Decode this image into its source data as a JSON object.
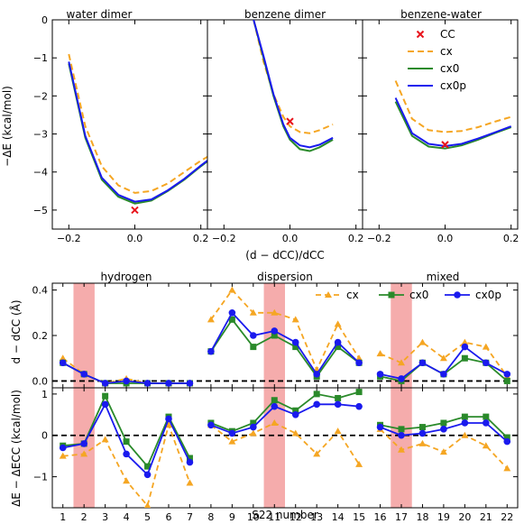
{
  "colors": {
    "cx": "#f5a623",
    "cx0": "#2a8a2a",
    "cx0p": "#1a1aee",
    "cc": "#e8141c",
    "shade": "#f08080",
    "zero": "#000000"
  },
  "top": {
    "ylabel": "−ΔE (kcal/mol)",
    "xlabel": "(d − dCC)/dCC",
    "yticks": [
      "0",
      "−1",
      "−2",
      "−3",
      "−4",
      "−5"
    ],
    "xticks": [
      "−0.2",
      "0.0",
      "0.2"
    ],
    "ylim": [
      -5.5,
      0
    ],
    "legend": [
      "CC",
      "cx",
      "cx0",
      "cx0p"
    ]
  },
  "bottom": {
    "groups": [
      "hydrogen",
      "dispersion",
      "mixed"
    ],
    "y1label": "d − dCC (Å)",
    "y2label": "ΔE − ΔECC (kcal/mol)",
    "y1ticks": [
      "0.0",
      "0.2",
      "0.4"
    ],
    "y2ticks": [
      "−1",
      "0",
      "1"
    ],
    "xlabel": "S22 number",
    "xticks": [
      "1",
      "2",
      "3",
      "4",
      "5",
      "6",
      "7",
      "8",
      "9",
      "10",
      "11",
      "12",
      "13",
      "14",
      "15",
      "16",
      "17",
      "18",
      "19",
      "20",
      "21",
      "22"
    ],
    "legend": [
      "cx",
      "cx0",
      "cx0p"
    ]
  },
  "chart_data": [
    {
      "type": "line",
      "title": "water dimer",
      "xlabel": "(d − dCC)/dCC",
      "ylabel": "−ΔE (kcal/mol)",
      "xlim": [
        -0.25,
        0.22
      ],
      "ylim": [
        -5.5,
        0
      ],
      "series": [
        {
          "name": "cx",
          "x": [
            -0.2,
            -0.15,
            -0.1,
            -0.05,
            0,
            0.05,
            0.1,
            0.15,
            0.2,
            0.22
          ],
          "y": [
            -0.9,
            -2.8,
            -3.85,
            -4.35,
            -4.55,
            -4.5,
            -4.3,
            -4.0,
            -3.7,
            -3.6
          ]
        },
        {
          "name": "cx0",
          "x": [
            -0.2,
            -0.15,
            -0.1,
            -0.05,
            0,
            0.05,
            0.1,
            0.15,
            0.2,
            0.22
          ],
          "y": [
            -1.15,
            -3.1,
            -4.2,
            -4.65,
            -4.83,
            -4.75,
            -4.5,
            -4.2,
            -3.85,
            -3.72
          ]
        },
        {
          "name": "cx0p",
          "x": [
            -0.2,
            -0.15,
            -0.1,
            -0.05,
            0,
            0.05,
            0.1,
            0.15,
            0.2,
            0.22
          ],
          "y": [
            -1.1,
            -3.05,
            -4.15,
            -4.6,
            -4.78,
            -4.72,
            -4.48,
            -4.18,
            -3.83,
            -3.7
          ]
        },
        {
          "name": "CC",
          "x": [
            0
          ],
          "y": [
            -5.0
          ]
        }
      ]
    },
    {
      "type": "line",
      "title": "benzene dimer",
      "xlim": [
        -0.25,
        0.22
      ],
      "ylim": [
        -5.5,
        0
      ],
      "series": [
        {
          "name": "cx",
          "x": [
            -0.11,
            -0.08,
            -0.05,
            -0.02,
            0,
            0.03,
            0.06,
            0.09,
            0.13
          ],
          "y": [
            0,
            -1.1,
            -1.95,
            -2.55,
            -2.8,
            -2.95,
            -2.98,
            -2.9,
            -2.75
          ]
        },
        {
          "name": "cx0",
          "x": [
            -0.11,
            -0.08,
            -0.05,
            -0.02,
            0,
            0.03,
            0.06,
            0.09,
            0.13
          ],
          "y": [
            0,
            -1.0,
            -2.0,
            -2.8,
            -3.15,
            -3.4,
            -3.45,
            -3.35,
            -3.15
          ]
        },
        {
          "name": "cx0p",
          "x": [
            -0.11,
            -0.08,
            -0.05,
            -0.02,
            0,
            0.03,
            0.06,
            0.09,
            0.13
          ],
          "y": [
            0,
            -0.95,
            -1.95,
            -2.75,
            -3.1,
            -3.3,
            -3.35,
            -3.28,
            -3.1
          ]
        },
        {
          "name": "CC",
          "x": [
            0
          ],
          "y": [
            -2.67
          ]
        }
      ]
    },
    {
      "type": "line",
      "title": "benzene-water",
      "xlim": [
        -0.25,
        0.22
      ],
      "ylim": [
        -5.5,
        0
      ],
      "series": [
        {
          "name": "cx",
          "x": [
            -0.15,
            -0.1,
            -0.05,
            0,
            0.05,
            0.1,
            0.15,
            0.2
          ],
          "y": [
            -1.6,
            -2.6,
            -2.9,
            -2.95,
            -2.92,
            -2.82,
            -2.68,
            -2.55
          ]
        },
        {
          "name": "cx0",
          "x": [
            -0.15,
            -0.1,
            -0.05,
            0,
            0.05,
            0.1,
            0.15,
            0.2
          ],
          "y": [
            -2.15,
            -3.05,
            -3.33,
            -3.38,
            -3.3,
            -3.15,
            -2.98,
            -2.82
          ]
        },
        {
          "name": "cx0p",
          "x": [
            -0.15,
            -0.1,
            -0.05,
            0,
            0.05,
            0.1,
            0.15,
            0.2
          ],
          "y": [
            -2.05,
            -2.98,
            -3.26,
            -3.32,
            -3.26,
            -3.12,
            -2.96,
            -2.8
          ]
        },
        {
          "name": "CC",
          "x": [
            0
          ],
          "y": [
            -3.28
          ]
        }
      ]
    },
    {
      "type": "line",
      "title": "",
      "xlabel": "S22 number",
      "ylabel": "d − dCC (Å)",
      "ylim": [
        -0.03,
        0.43
      ],
      "x": [
        1,
        2,
        3,
        4,
        5,
        6,
        7,
        8,
        9,
        10,
        11,
        12,
        13,
        14,
        15,
        16,
        17,
        18,
        19,
        20,
        21,
        22
      ],
      "series": [
        {
          "name": "cx",
          "values": [
            0.1,
            0.03,
            -0.01,
            0.01,
            -0.01,
            -0.01,
            -0.01,
            0.27,
            0.4,
            0.3,
            0.3,
            0.27,
            0.05,
            0.25,
            0.1,
            0.12,
            0.08,
            0.17,
            0.1,
            0.17,
            0.15,
            0.02
          ]
        },
        {
          "name": "cx0",
          "values": [
            0.08,
            0.03,
            -0.01,
            -0.01,
            -0.01,
            -0.01,
            -0.01,
            0.13,
            0.27,
            0.15,
            0.2,
            0.15,
            0.02,
            0.15,
            0.08,
            0.02,
            0.0,
            0.08,
            0.03,
            0.1,
            0.08,
            0.0
          ]
        },
        {
          "name": "cx0p",
          "values": [
            0.08,
            0.03,
            -0.01,
            0.0,
            -0.01,
            -0.01,
            -0.01,
            0.13,
            0.3,
            0.2,
            0.22,
            0.17,
            0.03,
            0.17,
            0.08,
            0.03,
            0.01,
            0.08,
            0.03,
            0.15,
            0.08,
            0.03
          ]
        }
      ]
    },
    {
      "type": "line",
      "title": "",
      "xlabel": "S22 number",
      "ylabel": "ΔE − ΔECC (kcal/mol)",
      "ylim": [
        -1.75,
        1.15
      ],
      "x": [
        1,
        2,
        3,
        4,
        5,
        6,
        7,
        8,
        9,
        10,
        11,
        12,
        13,
        14,
        15,
        16,
        17,
        18,
        19,
        20,
        21,
        22
      ],
      "series": [
        {
          "name": "cx",
          "values": [
            -0.5,
            -0.45,
            -0.1,
            -1.1,
            -1.7,
            0.25,
            -1.15,
            0.25,
            -0.15,
            0.05,
            0.3,
            0.05,
            -0.45,
            0.1,
            -0.7,
            0.15,
            -0.35,
            -0.2,
            -0.4,
            0.0,
            -0.25,
            -0.8
          ]
        },
        {
          "name": "cx0",
          "values": [
            -0.25,
            -0.2,
            0.95,
            -0.15,
            -0.75,
            0.45,
            -0.55,
            0.3,
            0.1,
            0.3,
            0.85,
            0.6,
            1.0,
            0.9,
            1.05,
            0.25,
            0.15,
            0.2,
            0.3,
            0.45,
            0.45,
            -0.05
          ]
        },
        {
          "name": "cx0p",
          "values": [
            -0.3,
            -0.2,
            0.75,
            -0.45,
            -0.95,
            0.4,
            -0.65,
            0.25,
            0.05,
            0.2,
            0.7,
            0.5,
            0.75,
            0.75,
            0.7,
            0.2,
            0.0,
            0.05,
            0.15,
            0.3,
            0.3,
            -0.15
          ]
        }
      ]
    }
  ]
}
